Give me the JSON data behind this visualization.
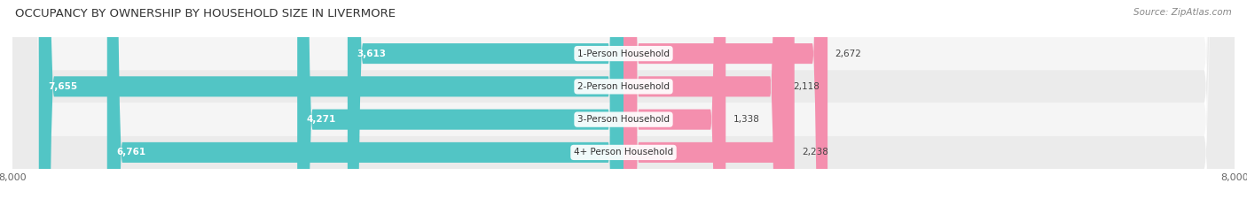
{
  "title": "OCCUPANCY BY OWNERSHIP BY HOUSEHOLD SIZE IN LIVERMORE",
  "source": "Source: ZipAtlas.com",
  "categories": [
    "1-Person Household",
    "2-Person Household",
    "3-Person Household",
    "4+ Person Household"
  ],
  "owner_values": [
    3613,
    7655,
    4271,
    6761
  ],
  "renter_values": [
    2672,
    2118,
    1338,
    2238
  ],
  "owner_color": "#52C5C5",
  "renter_color": "#F48FAE",
  "row_bg_colors": [
    "#F5F5F5",
    "#EBEBEB",
    "#F5F5F5",
    "#EBEBEB"
  ],
  "axis_max": 8000,
  "title_fontsize": 9.5,
  "source_fontsize": 7.5,
  "label_fontsize": 7.5,
  "tick_fontsize": 8,
  "category_fontsize": 7.5,
  "background_color": "#FFFFFF",
  "inner_label_threshold": 1200
}
